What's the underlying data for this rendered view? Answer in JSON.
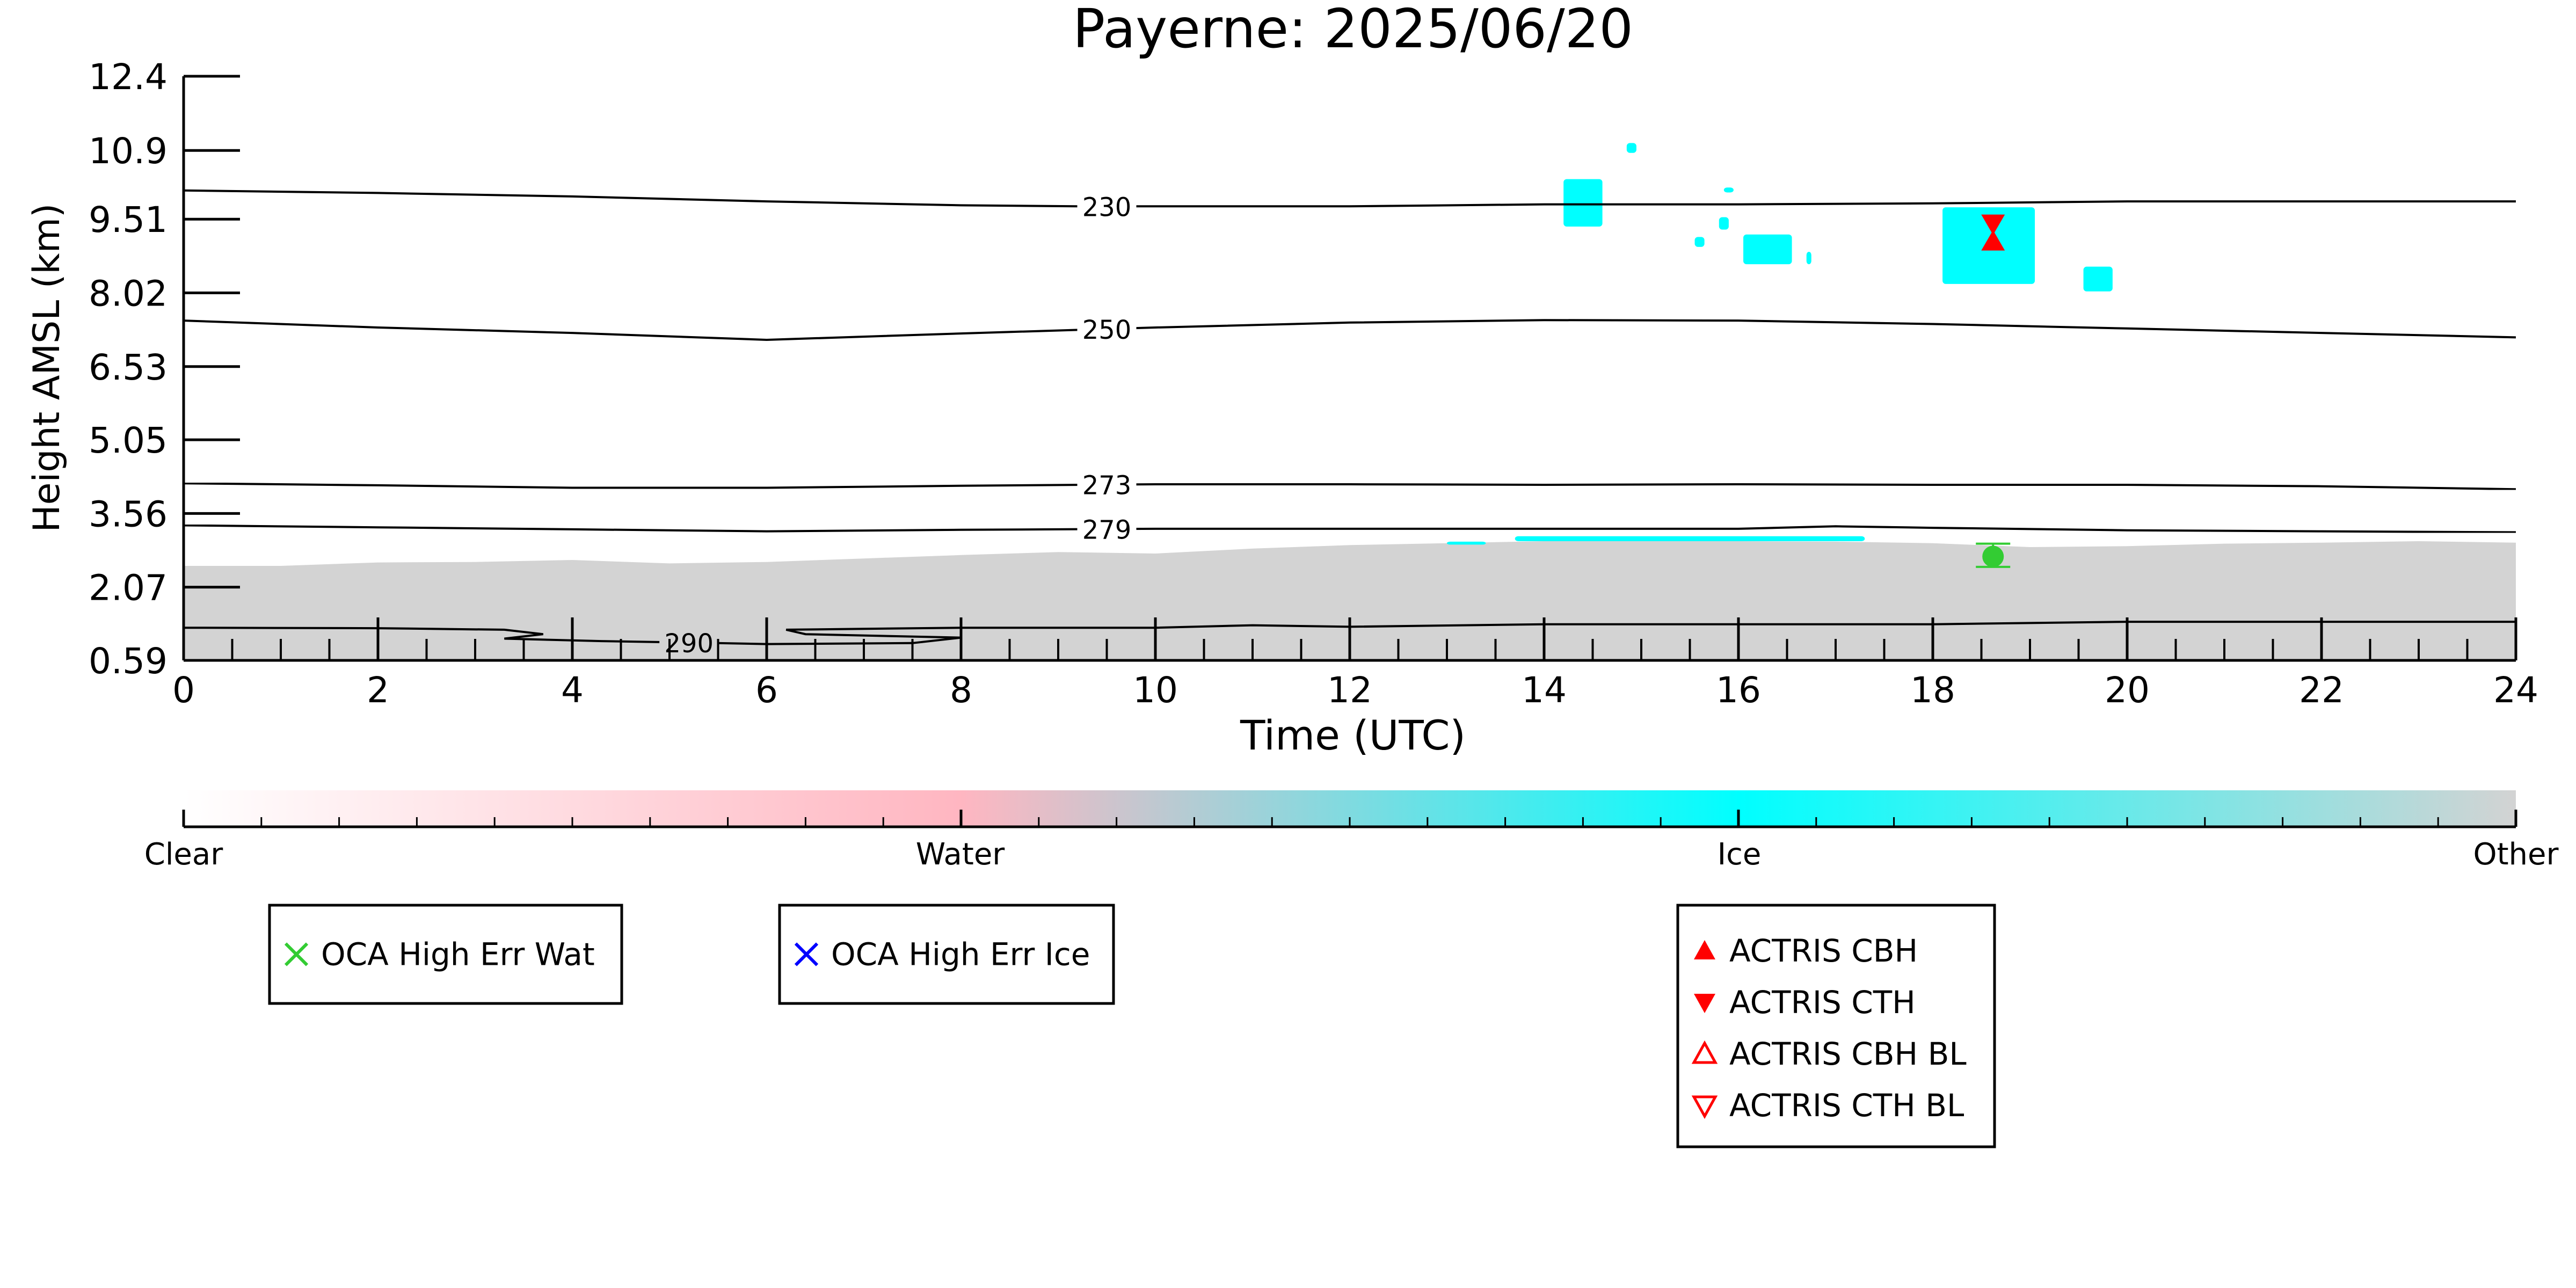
{
  "chart_data": {
    "type": "heatmap",
    "title": "Payerne: 2025/06/20",
    "xlabel": "Time (UTC)",
    "ylabel": "Height AMSL (km)",
    "xlim": [
      0,
      24
    ],
    "ylim": [
      0.59,
      12.4
    ],
    "x_ticks": [
      "0",
      "2",
      "4",
      "6",
      "8",
      "10",
      "12",
      "14",
      "16",
      "18",
      "20",
      "22",
      "24"
    ],
    "y_ticks": [
      {
        "value": 0.59,
        "label": "0.59"
      },
      {
        "value": 2.07,
        "label": "2.07"
      },
      {
        "value": 3.56,
        "label": "3.56"
      },
      {
        "value": 5.05,
        "label": "5.05"
      },
      {
        "value": 6.53,
        "label": "6.53"
      },
      {
        "value": 8.02,
        "label": "8.02"
      },
      {
        "value": 9.51,
        "label": "9.51"
      },
      {
        "value": 10.9,
        "label": "10.9"
      },
      {
        "value": 12.4,
        "label": "12.4"
      }
    ],
    "colors": {
      "clear": "#ffffff",
      "water": "#ffb6c1",
      "ice": "#00ffff",
      "other": "#d3d3d3"
    },
    "contours": [
      {
        "label": "230",
        "label_x": 9.5,
        "points": [
          [
            0,
            10.09
          ],
          [
            2,
            10.04
          ],
          [
            4,
            9.97
          ],
          [
            6,
            9.87
          ],
          [
            8,
            9.79
          ],
          [
            9.2,
            9.77
          ],
          [
            10,
            9.77
          ],
          [
            12,
            9.77
          ],
          [
            14,
            9.81
          ],
          [
            16,
            9.81
          ],
          [
            18,
            9.83
          ],
          [
            20,
            9.87
          ],
          [
            22,
            9.87
          ],
          [
            24,
            9.87
          ]
        ]
      },
      {
        "label": "250",
        "label_x": 9.5,
        "points": [
          [
            0,
            7.46
          ],
          [
            2,
            7.32
          ],
          [
            4,
            7.21
          ],
          [
            6,
            7.07
          ],
          [
            8,
            7.2
          ],
          [
            10,
            7.32
          ],
          [
            12,
            7.42
          ],
          [
            14,
            7.47
          ],
          [
            16,
            7.46
          ],
          [
            18,
            7.39
          ],
          [
            20,
            7.3
          ],
          [
            22,
            7.21
          ],
          [
            24,
            7.12
          ]
        ]
      },
      {
        "label": "273",
        "label_x": 9.5,
        "points": [
          [
            0,
            4.17
          ],
          [
            2,
            4.13
          ],
          [
            4,
            4.08
          ],
          [
            6,
            4.08
          ],
          [
            8,
            4.12
          ],
          [
            10,
            4.15
          ],
          [
            12,
            4.15
          ],
          [
            14,
            4.14
          ],
          [
            16,
            4.15
          ],
          [
            18,
            4.14
          ],
          [
            20,
            4.14
          ],
          [
            22,
            4.11
          ],
          [
            24,
            4.05
          ]
        ]
      },
      {
        "label": "279",
        "label_x": 9.5,
        "points": [
          [
            0,
            3.32
          ],
          [
            2,
            3.28
          ],
          [
            4,
            3.24
          ],
          [
            6,
            3.2
          ],
          [
            8,
            3.23
          ],
          [
            10,
            3.25
          ],
          [
            12,
            3.25
          ],
          [
            14,
            3.25
          ],
          [
            16,
            3.25
          ],
          [
            17,
            3.3
          ],
          [
            18,
            3.27
          ],
          [
            20,
            3.22
          ],
          [
            22,
            3.2
          ],
          [
            24,
            3.18
          ]
        ]
      },
      {
        "label": "290",
        "label_x": 5.2,
        "points": [
          [
            0,
            1.25
          ],
          [
            2,
            1.24
          ],
          [
            3.3,
            1.21
          ],
          [
            3.7,
            1.12
          ],
          [
            3.3,
            1.03
          ],
          [
            4.3,
            0.98
          ],
          [
            5.2,
            0.95
          ],
          [
            6,
            0.92
          ],
          [
            7.5,
            0.94
          ],
          [
            8,
            1.05
          ],
          [
            7.3,
            1.08
          ],
          [
            6.4,
            1.12
          ],
          [
            6.2,
            1.21
          ],
          [
            8,
            1.25
          ],
          [
            10,
            1.25
          ],
          [
            11,
            1.3
          ],
          [
            12,
            1.27
          ],
          [
            14,
            1.32
          ],
          [
            16,
            1.32
          ],
          [
            18,
            1.32
          ],
          [
            20,
            1.37
          ],
          [
            22,
            1.37
          ],
          [
            24,
            1.37
          ]
        ]
      }
    ],
    "other_region": [
      [
        0,
        2.5
      ],
      [
        1,
        2.5
      ],
      [
        2,
        2.57
      ],
      [
        3,
        2.58
      ],
      [
        4,
        2.62
      ],
      [
        5,
        2.55
      ],
      [
        6,
        2.58
      ],
      [
        7,
        2.65
      ],
      [
        8,
        2.72
      ],
      [
        9,
        2.78
      ],
      [
        10,
        2.75
      ],
      [
        11,
        2.85
      ],
      [
        12,
        2.92
      ],
      [
        13,
        2.96
      ],
      [
        14,
        3.0
      ],
      [
        15,
        3.03
      ],
      [
        16,
        3.0
      ],
      [
        17,
        2.99
      ],
      [
        18,
        2.96
      ],
      [
        19,
        2.88
      ],
      [
        20,
        2.9
      ],
      [
        21,
        2.95
      ],
      [
        22,
        2.97
      ],
      [
        23,
        3.0
      ],
      [
        24,
        2.97
      ]
    ],
    "ice_patches": [
      {
        "t0": 14.2,
        "t1": 14.6,
        "h0": 9.36,
        "h1": 10.32
      },
      {
        "t0": 14.85,
        "t1": 14.95,
        "h0": 10.85,
        "h1": 11.05
      },
      {
        "t0": 15.55,
        "t1": 15.65,
        "h0": 8.95,
        "h1": 9.15
      },
      {
        "t0": 15.8,
        "t1": 15.9,
        "h0": 9.3,
        "h1": 9.55
      },
      {
        "t0": 15.85,
        "t1": 15.95,
        "h0": 10.05,
        "h1": 10.15
      },
      {
        "t0": 16.05,
        "t1": 16.55,
        "h0": 8.6,
        "h1": 9.2
      },
      {
        "t0": 16.7,
        "t1": 16.75,
        "h0": 8.6,
        "h1": 8.85
      },
      {
        "t0": 18.1,
        "t1": 19.05,
        "h0": 8.2,
        "h1": 9.75
      },
      {
        "t0": 19.55,
        "t1": 19.85,
        "h0": 8.05,
        "h1": 8.55
      },
      {
        "t0": 13.7,
        "t1": 17.3,
        "h0": 3.0,
        "h1": 3.1
      },
      {
        "t0": 13.0,
        "t1": 13.4,
        "h0": 2.93,
        "h1": 2.99
      }
    ],
    "markers": {
      "actris_cbh": [
        {
          "x": 18.62,
          "y": 9.05
        }
      ],
      "actris_cth": [
        {
          "x": 18.62,
          "y": 9.43
        }
      ],
      "oca_point": {
        "x": 18.62,
        "y": 2.69,
        "err_low": 2.48,
        "err_high": 2.95,
        "color": "#33cc33"
      }
    },
    "colorbar": {
      "labels": [
        "Clear",
        "Water",
        "Ice",
        "Other"
      ],
      "stops": [
        0,
        0.333,
        0.667,
        1
      ]
    },
    "legends": [
      {
        "entries": [
          {
            "symbol": "cross",
            "color": "#33cc33",
            "label": "OCA High Err Wat"
          }
        ]
      },
      {
        "entries": [
          {
            "symbol": "cross",
            "color": "#0000ff",
            "label": "OCA High Err Ice"
          }
        ]
      },
      {
        "entries": [
          {
            "symbol": "triangle-up-filled",
            "color": "#ff0000",
            "label": "ACTRIS CBH"
          },
          {
            "symbol": "triangle-down-filled",
            "color": "#ff0000",
            "label": "ACTRIS CTH"
          },
          {
            "symbol": "triangle-up-open",
            "color": "#ff0000",
            "label": "ACTRIS CBH BL"
          },
          {
            "symbol": "triangle-down-open",
            "color": "#ff0000",
            "label": "ACTRIS CTH BL"
          }
        ]
      }
    ]
  }
}
